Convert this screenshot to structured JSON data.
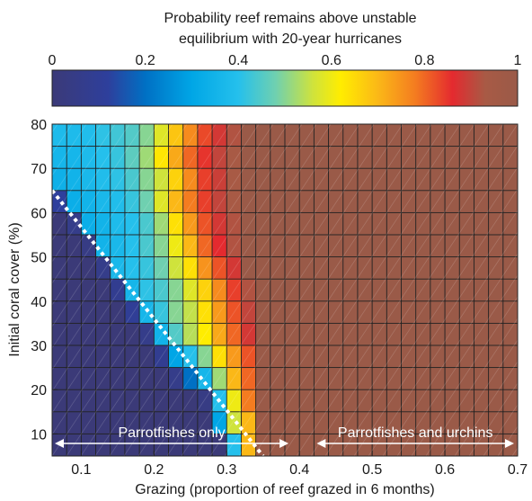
{
  "chart_data": {
    "type": "heatmap",
    "colorbar": {
      "title_line1": "Probability reef remains above unstable",
      "title_line2": "equilibrium with 20-year hurricanes",
      "range": [
        0,
        1
      ],
      "ticks": [
        "0",
        "0.2",
        "0.4",
        "0.6",
        "0.8",
        "1"
      ]
    },
    "xlabel": "Grazing (proportion of reef grazed in 6 months)",
    "ylabel": "Initial coral cover (%)",
    "xlim": [
      0.06,
      0.7
    ],
    "ylim": [
      5,
      80
    ],
    "x_ticks": [
      "0.1",
      "0.2",
      "0.3",
      "0.4",
      "0.5",
      "0.6",
      "0.7"
    ],
    "y_ticks": [
      "10",
      "20",
      "30",
      "40",
      "50",
      "60",
      "70",
      "80"
    ],
    "grid": {
      "x_start": 0.06,
      "x_step": 0.02,
      "x_count": 32,
      "y_start": 5,
      "y_step": 5,
      "y_count": 15
    },
    "dotted_line": {
      "from": [
        0.06,
        65
      ],
      "to": [
        0.35,
        5
      ]
    },
    "annotations": [
      {
        "text": "Parrotfishes only",
        "arrow_from": 0.06,
        "arrow_to": 0.39
      },
      {
        "text": "Parrotfishes and urchins",
        "arrow_from": 0.42,
        "arrow_to": 0.7
      }
    ],
    "rows": [
      {
        "y": 80,
        "values": [
          0.38,
          0.38,
          0.39,
          0.41,
          0.43,
          0.45,
          0.5,
          0.58,
          0.68,
          0.76,
          0.83,
          0.88,
          0.92,
          1,
          1,
          1,
          1,
          1,
          1,
          1,
          1,
          1,
          1,
          1,
          1,
          1,
          1,
          1,
          1,
          1,
          1,
          1
        ]
      },
      {
        "y": 75,
        "values": [
          0.36,
          0.36,
          0.38,
          0.4,
          0.42,
          0.46,
          0.52,
          0.63,
          0.72,
          0.8,
          0.85,
          0.9,
          0.93,
          1,
          1,
          1,
          1,
          1,
          1,
          1,
          1,
          1,
          1,
          1,
          1,
          1,
          1,
          1,
          1,
          1,
          1,
          1
        ]
      },
      {
        "y": 70,
        "values": [
          0.34,
          0.35,
          0.37,
          0.39,
          0.41,
          0.44,
          0.5,
          0.56,
          0.66,
          0.76,
          0.84,
          0.89,
          0.93,
          1,
          1,
          1,
          1,
          1,
          1,
          1,
          1,
          1,
          1,
          1,
          1,
          1,
          1,
          1,
          1,
          1,
          1,
          1
        ]
      },
      {
        "y": 65,
        "values": [
          0.12,
          0.33,
          0.35,
          0.37,
          0.39,
          0.42,
          0.48,
          0.58,
          0.7,
          0.78,
          0.84,
          0.9,
          0.93,
          1,
          1,
          1,
          1,
          1,
          1,
          1,
          1,
          1,
          1,
          1,
          1,
          1,
          1,
          1,
          1,
          1,
          1,
          1
        ]
      },
      {
        "y": 60,
        "values": [
          0,
          0.06,
          0.33,
          0.35,
          0.38,
          0.4,
          0.44,
          0.52,
          0.64,
          0.74,
          0.82,
          0.88,
          0.92,
          1,
          1,
          1,
          1,
          1,
          1,
          1,
          1,
          1,
          1,
          1,
          1,
          1,
          1,
          1,
          1,
          1,
          1,
          1
        ]
      },
      {
        "y": 55,
        "values": [
          0,
          0,
          0.04,
          0.35,
          0.37,
          0.4,
          0.44,
          0.5,
          0.6,
          0.7,
          0.8,
          0.86,
          0.92,
          1,
          1,
          1,
          1,
          1,
          1,
          1,
          1,
          1,
          1,
          1,
          1,
          1,
          1,
          1,
          1,
          1,
          1,
          1
        ]
      },
      {
        "y": 50,
        "values": [
          0,
          0,
          0,
          0.06,
          0.37,
          0.4,
          0.42,
          0.48,
          0.56,
          0.64,
          0.75,
          0.82,
          0.88,
          1,
          1,
          1,
          1,
          1,
          1,
          1,
          1,
          1,
          1,
          1,
          1,
          1,
          1,
          1,
          1,
          1,
          1,
          1
        ]
      },
      {
        "y": 45,
        "values": [
          0,
          0,
          0,
          0,
          0.08,
          0.36,
          0.41,
          0.44,
          0.5,
          0.58,
          0.66,
          0.76,
          0.84,
          0.92,
          1,
          1,
          1,
          1,
          1,
          1,
          1,
          1,
          1,
          1,
          1,
          1,
          1,
          1,
          1,
          1,
          1,
          1
        ]
      },
      {
        "y": 40,
        "values": [
          0,
          0,
          0,
          0,
          0,
          0.1,
          0.36,
          0.42,
          0.5,
          0.55,
          0.64,
          0.74,
          0.82,
          0.9,
          1,
          1,
          1,
          1,
          1,
          1,
          1,
          1,
          1,
          1,
          1,
          1,
          1,
          1,
          1,
          1,
          1,
          1
        ]
      },
      {
        "y": 35,
        "values": [
          0,
          0,
          0,
          0,
          0,
          0,
          0.06,
          0.35,
          0.45,
          0.54,
          0.62,
          0.72,
          0.8,
          0.88,
          1,
          1,
          1,
          1,
          1,
          1,
          1,
          1,
          1,
          1,
          1,
          1,
          1,
          1,
          1,
          1,
          1,
          1
        ]
      },
      {
        "y": 30,
        "values": [
          0,
          0,
          0,
          0,
          0,
          0,
          0,
          0.08,
          0.3,
          0.4,
          0.5,
          0.64,
          0.74,
          0.82,
          1,
          1,
          1,
          1,
          1,
          1,
          1,
          1,
          1,
          1,
          1,
          1,
          1,
          1,
          1,
          1,
          1,
          1
        ]
      },
      {
        "y": 25,
        "values": [
          0,
          0,
          0,
          0,
          0,
          0,
          0,
          0,
          0.06,
          0.2,
          0.36,
          0.52,
          0.7,
          0.8,
          1,
          1,
          1,
          1,
          1,
          1,
          1,
          1,
          1,
          1,
          1,
          1,
          1,
          1,
          1,
          1,
          1,
          1
        ]
      },
      {
        "y": 20,
        "values": [
          0,
          0,
          0,
          0,
          0,
          0,
          0,
          0,
          0,
          0,
          0.04,
          0.4,
          0.6,
          0.78,
          1,
          1,
          1,
          1,
          1,
          1,
          1,
          1,
          1,
          1,
          1,
          1,
          1,
          1,
          1,
          1,
          1,
          1
        ]
      },
      {
        "y": 15,
        "values": [
          0,
          0,
          0,
          0,
          0,
          0,
          0,
          0,
          0,
          0,
          0,
          0.3,
          0.56,
          0.7,
          1,
          1,
          1,
          1,
          1,
          1,
          1,
          1,
          1,
          1,
          1,
          1,
          1,
          1,
          1,
          1,
          1,
          1
        ]
      },
      {
        "y": 10,
        "values": [
          0,
          0,
          0,
          0,
          0,
          0,
          0,
          0,
          0,
          0,
          0,
          0,
          0.4,
          0.7,
          1,
          1,
          1,
          1,
          1,
          1,
          1,
          1,
          1,
          1,
          1,
          1,
          1,
          1,
          1,
          1,
          1,
          1
        ]
      }
    ]
  }
}
